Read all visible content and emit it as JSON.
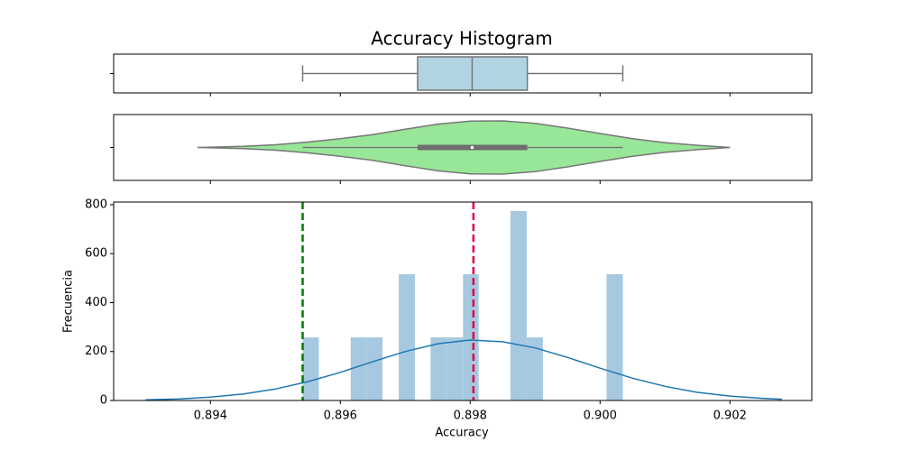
{
  "chart_data": [
    {
      "type": "box",
      "title": "Accuracy Histogram",
      "whislo": 0.89542,
      "q1": 0.89719,
      "med": 0.89803,
      "q3": 0.89888,
      "whishi": 0.90035,
      "color": "#b0d4e2",
      "edge_color": "#777777"
    },
    {
      "type": "violin",
      "x": [
        0.8938,
        0.8945,
        0.895,
        0.8955,
        0.896,
        0.8965,
        0.897,
        0.8975,
        0.898,
        0.8985,
        0.899,
        0.8995,
        0.9,
        0.9005,
        0.901,
        0.9015,
        0.902
      ],
      "density": [
        0,
        0.04,
        0.1,
        0.2,
        0.33,
        0.48,
        0.68,
        0.87,
        0.98,
        0.99,
        0.9,
        0.72,
        0.52,
        0.33,
        0.18,
        0.08,
        0
      ],
      "whislo": 0.89542,
      "q1": 0.89719,
      "med": 0.89803,
      "q3": 0.89888,
      "whishi": 0.90035,
      "color": "#98e698",
      "edge_color": "#777777"
    },
    {
      "type": "histogram",
      "xlabel": "Accuracy",
      "ylabel": "Frecuencia",
      "bins": [
        0.89542,
        0.89567,
        0.89591,
        0.89616,
        0.89641,
        0.89665,
        0.8969,
        0.89715,
        0.89739,
        0.89764,
        0.89789,
        0.89813,
        0.89838,
        0.89862,
        0.89887,
        0.89912,
        0.89936,
        0.89961,
        0.89986,
        0.9001,
        0.90035
      ],
      "values": [
        258,
        0,
        0,
        258,
        258,
        0,
        516,
        0,
        258,
        258,
        516,
        0,
        0,
        774,
        258,
        0,
        0,
        0,
        0,
        516
      ],
      "color": "#a6c9e1",
      "kde": {
        "x": [
          0.893,
          0.8935,
          0.894,
          0.8945,
          0.895,
          0.8955,
          0.896,
          0.8965,
          0.897,
          0.8975,
          0.898,
          0.8985,
          0.899,
          0.8995,
          0.9,
          0.9005,
          0.901,
          0.9015,
          0.902,
          0.9025,
          0.9028
        ],
        "values": [
          3,
          6,
          14,
          26,
          47,
          77,
          115,
          159,
          200,
          232,
          247,
          240,
          215,
          176,
          132,
          91,
          58,
          33,
          18,
          9,
          5
        ],
        "color": "#1f77b4"
      },
      "vlines": [
        {
          "value": 0.89542,
          "color": "#008000"
        },
        {
          "value": 0.89805,
          "color": "#e0003c"
        }
      ],
      "xlim": [
        0.89251,
        0.90326
      ],
      "xticks": [
        {
          "value": 0.894,
          "label": "0.894"
        },
        {
          "value": 0.896,
          "label": "0.896"
        },
        {
          "value": 0.898,
          "label": "0.898"
        },
        {
          "value": 0.9,
          "label": "0.900"
        },
        {
          "value": 0.902,
          "label": "0.902"
        }
      ],
      "ylim": [
        0,
        811
      ],
      "yticks": [
        0,
        200,
        400,
        600,
        800
      ]
    }
  ]
}
